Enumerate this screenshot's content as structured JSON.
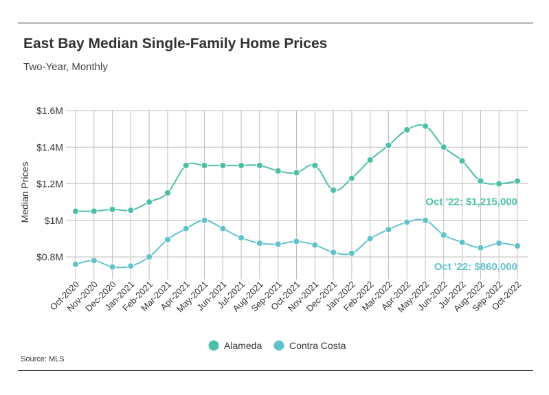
{
  "header": {
    "title": "East Bay Median Single-Family Home Prices",
    "subtitle": "Two-Year, Monthly"
  },
  "footer": {
    "source": "Source: MLS"
  },
  "colors": {
    "alameda": "#4dbfa8",
    "contra_costa": "#62c2cc",
    "grid": "#bdbdbd",
    "text": "#333333"
  },
  "chart_data": {
    "type": "line",
    "title": "East Bay Median Single-Family Home Prices",
    "subtitle": "Two-Year, Monthly",
    "xlabel": "",
    "ylabel": "Median Prices",
    "ylim": [
      0.7,
      1.6
    ],
    "yticks": [
      0.8,
      1.0,
      1.2,
      1.4,
      1.6
    ],
    "ytick_labels": [
      "$0.8M",
      "$1M",
      "$1.2M",
      "$1.4M",
      "$1.6M"
    ],
    "grid": true,
    "legend_position": "bottom-center",
    "categories": [
      "Oct-2020",
      "Nov-2020",
      "Dec-2020",
      "Jan-2021",
      "Feb-2021",
      "Mar-2021",
      "Apr-2021",
      "May-2021",
      "Jun-2021",
      "Jul-2021",
      "Aug-2021",
      "Sep-2021",
      "Oct-2021",
      "Nov-2021",
      "Dec-2021",
      "Jan-2022",
      "Feb-2022",
      "Mar-2022",
      "Apr-2022",
      "May-2022",
      "Jun-2022",
      "Jul-2022",
      "Aug-2022",
      "Sep-2022",
      "Oct-2022"
    ],
    "series": [
      {
        "name": "Alameda",
        "values": [
          1.05,
          1.05,
          1.06,
          1.055,
          1.1,
          1.15,
          1.3,
          1.3,
          1.3,
          1.3,
          1.3,
          1.27,
          1.26,
          1.3,
          1.165,
          1.23,
          1.33,
          1.41,
          1.495,
          1.515,
          1.4,
          1.325,
          1.215,
          1.2,
          1.215
        ]
      },
      {
        "name": "Contra Costa",
        "values": [
          0.76,
          0.78,
          0.745,
          0.75,
          0.8,
          0.895,
          0.955,
          1.0,
          0.955,
          0.905,
          0.875,
          0.87,
          0.885,
          0.865,
          0.825,
          0.82,
          0.9,
          0.95,
          0.99,
          1.0,
          0.92,
          0.88,
          0.85,
          0.875,
          0.86
        ]
      }
    ],
    "annotations": [
      {
        "series": "Alameda",
        "text": "Oct '22: $1,215,000"
      },
      {
        "series": "Contra Costa",
        "text": "Oct '22: $860,000"
      }
    ]
  }
}
